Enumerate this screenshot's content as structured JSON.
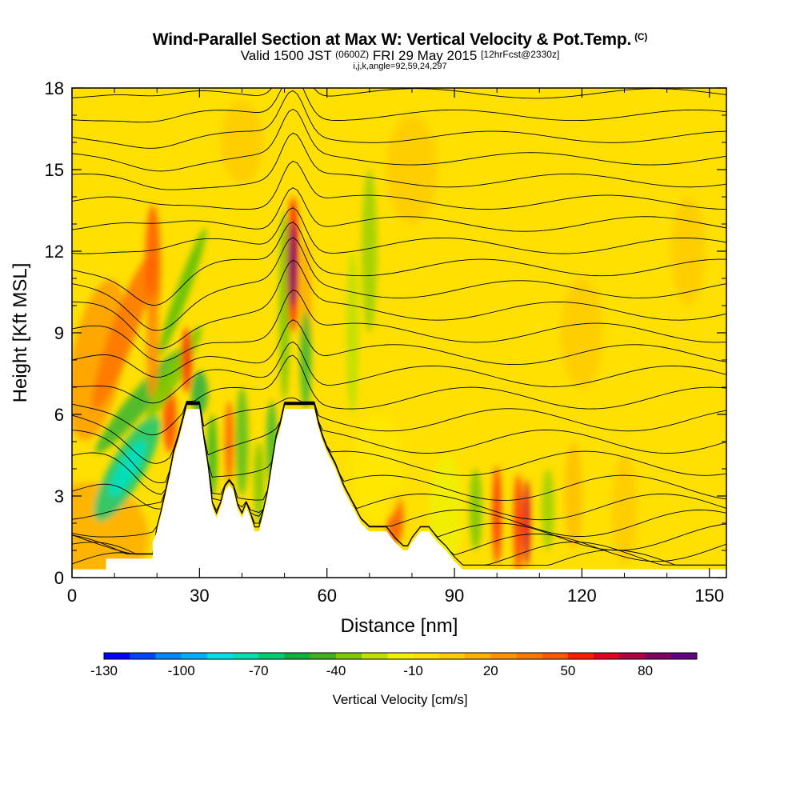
{
  "header": {
    "title": "Wind-Parallel Section at Max W: Vertical Velocity & Pot.Temp.",
    "copyright": "(C)",
    "valid_prefix": "Valid 1500 JST",
    "valid_utc": "(0600Z)",
    "valid_date": "FRI 29 May 2015",
    "forecast": "[12hrFcst@2330z]",
    "params": "i,j,k,angle=92,59,24,297"
  },
  "chart_data": {
    "type": "heatmap",
    "xlabel": "Distance [nm]",
    "ylabel": "Height [Kft MSL]",
    "xlim": [
      0,
      154
    ],
    "ylim": [
      0,
      18
    ],
    "x_ticks": [
      "0",
      "30",
      "60",
      "90",
      "120",
      "150"
    ],
    "y_ticks": [
      "0",
      "3",
      "6",
      "9",
      "12",
      "15",
      "18"
    ],
    "terrain": [
      [
        0,
        0.3
      ],
      [
        8,
        0.3
      ],
      [
        8,
        0.7
      ],
      [
        19,
        0.7
      ],
      [
        19,
        1.3
      ],
      [
        20,
        1.7
      ],
      [
        21,
        2.3
      ],
      [
        22,
        3.0
      ],
      [
        23,
        3.7
      ],
      [
        24,
        4.5
      ],
      [
        25,
        5.0
      ],
      [
        26,
        5.6
      ],
      [
        27,
        6.2
      ],
      [
        30,
        6.2
      ],
      [
        31,
        5.0
      ],
      [
        32,
        4.0
      ],
      [
        33,
        2.6
      ],
      [
        34,
        2.2
      ],
      [
        35,
        2.6
      ],
      [
        36,
        3.2
      ],
      [
        37,
        3.4
      ],
      [
        38,
        3.2
      ],
      [
        39,
        2.5
      ],
      [
        40,
        2.2
      ],
      [
        41,
        2.6
      ],
      [
        42,
        2.2
      ],
      [
        43,
        1.7
      ],
      [
        44,
        1.7
      ],
      [
        45,
        2.3
      ],
      [
        46,
        3.0
      ],
      [
        47,
        4.0
      ],
      [
        48,
        5.0
      ],
      [
        49,
        5.5
      ],
      [
        50,
        6.2
      ],
      [
        57,
        6.2
      ],
      [
        58,
        5.5
      ],
      [
        59,
        5.0
      ],
      [
        60,
        4.6
      ],
      [
        62,
        4.0
      ],
      [
        64,
        3.2
      ],
      [
        66,
        2.6
      ],
      [
        68,
        2.0
      ],
      [
        70,
        1.7
      ],
      [
        74,
        1.7
      ],
      [
        76,
        1.3
      ],
      [
        78,
        1.0
      ],
      [
        79,
        1.0
      ],
      [
        80,
        1.3
      ],
      [
        82,
        1.7
      ],
      [
        84,
        1.7
      ],
      [
        86,
        1.3
      ],
      [
        88,
        1.0
      ],
      [
        90,
        0.6
      ],
      [
        92,
        0.3
      ],
      [
        154,
        0.3
      ]
    ],
    "theta_contours_label": "Pot.Temp."
  },
  "colorbar": {
    "title": "Vertical Velocity [cm/s]",
    "labels": [
      "-130",
      "-100",
      "-70",
      "-40",
      "-10",
      "20",
      "50",
      "80"
    ],
    "colors": [
      "#0000ff",
      "#0044ff",
      "#0088ff",
      "#00b0ff",
      "#00e0e8",
      "#00e0b0",
      "#00cc70",
      "#10b040",
      "#40b020",
      "#80c800",
      "#c0e000",
      "#f0f000",
      "#ffe000",
      "#ffcc00",
      "#ffb000",
      "#ff9400",
      "#ff7800",
      "#ff5a00",
      "#ff2000",
      "#e00020",
      "#b00040",
      "#800060",
      "#600080"
    ]
  }
}
